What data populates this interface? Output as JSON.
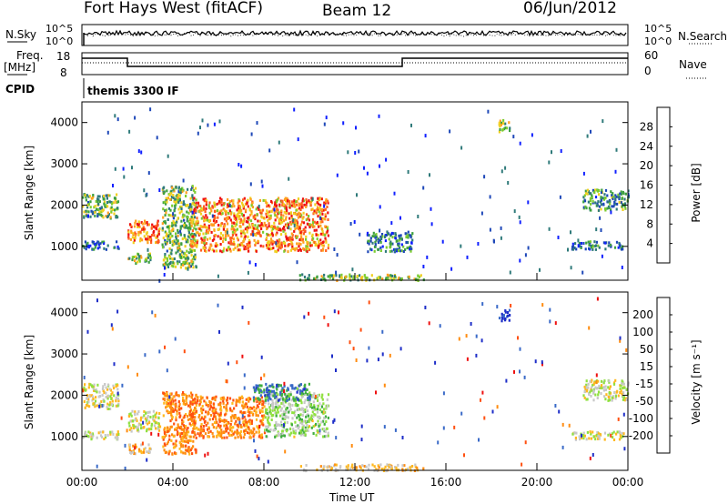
{
  "header": {
    "title": "Fort Hays West (fitACF)",
    "beam": "Beam 12",
    "date": "06/Jun/2012"
  },
  "top_panels": {
    "nsky_label": "N.Sky",
    "nsky_ticks": [
      "10^5",
      "10^0"
    ],
    "nsearch_label": "N.Search",
    "nsearch_ticks": [
      "10^5",
      "10^0"
    ],
    "freq_label": "Freq.",
    "freq_unit": "[MHz]",
    "freq_ticks": [
      "18",
      "8"
    ],
    "nave_label": "Nave",
    "nave_ticks": [
      "60",
      "0"
    ],
    "cpid_label": "CPID",
    "cpid_value": "themis 3300 IF"
  },
  "chart_data": [
    {
      "type": "heatmap",
      "panel": "power",
      "ylabel": "Slant Range [km]",
      "yticks": [
        "1000",
        "2000",
        "3000",
        "4000"
      ],
      "ylim": [
        180,
        4500
      ],
      "xlim": [
        0,
        24
      ],
      "colorbar": {
        "label": "Power [dB]",
        "ticks": [
          "4",
          "8",
          "12",
          "16",
          "20",
          "24",
          "28"
        ],
        "range": [
          0,
          30
        ],
        "colors": [
          "#1020ff",
          "#1e48b8",
          "#2f7a7a",
          "#3ea040",
          "#7ccc30",
          "#f0d020",
          "#ffa020",
          "#ff6020",
          "#ee1010"
        ]
      },
      "echo_regions": [
        {
          "t0": 0.0,
          "t1": 1.6,
          "r0": 1700,
          "r1": 2300,
          "level": 0.45
        },
        {
          "t0": 0.0,
          "t1": 1.6,
          "r0": 950,
          "r1": 1150,
          "level": 0.2
        },
        {
          "t0": 2.0,
          "t1": 3.4,
          "r0": 1100,
          "r1": 1650,
          "level": 0.8
        },
        {
          "t0": 2.0,
          "t1": 3.0,
          "r0": 600,
          "r1": 850,
          "level": 0.5
        },
        {
          "t0": 3.5,
          "t1": 5.0,
          "r0": 500,
          "r1": 2500,
          "level": 0.45
        },
        {
          "t0": 4.7,
          "t1": 10.8,
          "r0": 900,
          "r1": 2200,
          "level": 0.75
        },
        {
          "t0": 9.5,
          "t1": 15.0,
          "r0": 200,
          "r1": 350,
          "level": 0.5
        },
        {
          "t0": 12.5,
          "t1": 14.5,
          "r0": 900,
          "r1": 1400,
          "level": 0.3
        },
        {
          "t0": 18.3,
          "t1": 18.8,
          "r0": 3800,
          "r1": 4100,
          "level": 0.55
        },
        {
          "t0": 21.5,
          "t1": 23.8,
          "r0": 950,
          "r1": 1150,
          "level": 0.25
        },
        {
          "t0": 22.0,
          "t1": 24.0,
          "r0": 1900,
          "r1": 2400,
          "level": 0.35
        }
      ]
    },
    {
      "type": "heatmap",
      "panel": "velocity",
      "ylabel": "Slant Range [km]",
      "yticks": [
        "1000",
        "2000",
        "3000",
        "4000"
      ],
      "ylim": [
        180,
        4500
      ],
      "xlim": [
        0,
        24
      ],
      "xlabel": "Time UT",
      "xticks": [
        "00:00",
        "04:00",
        "08:00",
        "12:00",
        "16:00",
        "20:00",
        "00:00"
      ],
      "colorbar": {
        "label": "Velocity [m s⁻¹]",
        "ticks": [
          "-200",
          "-100",
          "-50",
          "-15",
          "15",
          "50",
          "100",
          "200"
        ],
        "range": [
          -250,
          250
        ],
        "colors": [
          "#ee1010",
          "#ff5010",
          "#ff8c10",
          "#ffb820",
          "#c8c8c8",
          "#90e040",
          "#3fae3f",
          "#3a6ac8",
          "#1e2ec8"
        ]
      },
      "echo_regions": [
        {
          "t0": 0.0,
          "t1": 1.6,
          "r0": 1700,
          "r1": 2300,
          "vel": 0
        },
        {
          "t0": 0.0,
          "t1": 1.6,
          "r0": 950,
          "r1": 1150,
          "vel": 0
        },
        {
          "t0": 2.0,
          "t1": 3.4,
          "r0": 1150,
          "r1": 1650,
          "vel": 0
        },
        {
          "t0": 2.0,
          "t1": 3.0,
          "r0": 600,
          "r1": 850,
          "vel": -60
        },
        {
          "t0": 3.5,
          "t1": 5.0,
          "r0": 600,
          "r1": 2100,
          "vel": -120
        },
        {
          "t0": 4.7,
          "t1": 8.0,
          "r0": 1000,
          "r1": 2000,
          "vel": -120
        },
        {
          "t0": 8.0,
          "t1": 10.8,
          "r0": 1000,
          "r1": 2100,
          "vel": 40
        },
        {
          "t0": 7.5,
          "t1": 10.0,
          "r0": 1900,
          "r1": 2300,
          "vel": 150
        },
        {
          "t0": 9.5,
          "t1": 15.0,
          "r0": 200,
          "r1": 350,
          "vel": -40
        },
        {
          "t0": 18.3,
          "t1": 18.8,
          "r0": 3800,
          "r1": 4100,
          "vel": 200
        },
        {
          "t0": 21.5,
          "t1": 23.8,
          "r0": 950,
          "r1": 1150,
          "vel": 0
        },
        {
          "t0": 22.0,
          "t1": 24.0,
          "r0": 1900,
          "r1": 2400,
          "vel": 0
        }
      ]
    }
  ]
}
